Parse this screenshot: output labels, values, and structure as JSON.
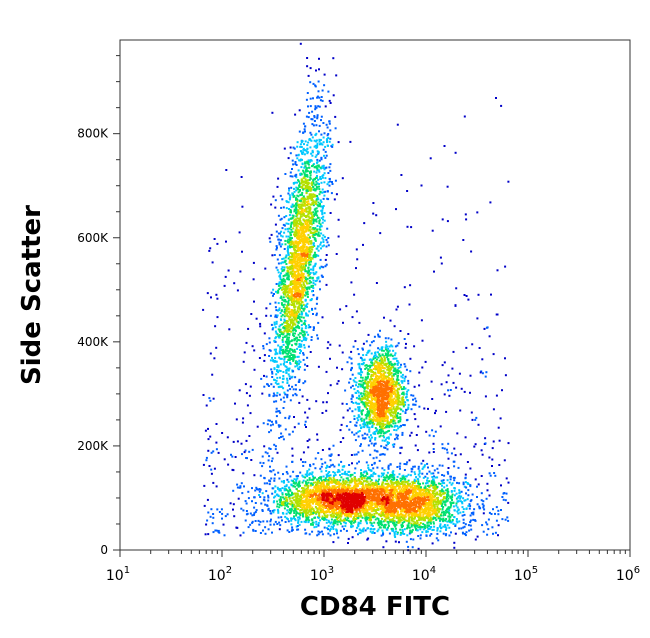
{
  "chart_data": {
    "type": "scatter",
    "style": "density-dot-plot",
    "title": "",
    "xlabel": "CD84 FITC",
    "ylabel": "Side Scatter",
    "x_scale": "log",
    "xlim": [
      10,
      1000000
    ],
    "y_scale": "linear",
    "ylim": [
      0,
      980000
    ],
    "x_ticks": [
      {
        "value": 10,
        "base": "10",
        "exp": "1"
      },
      {
        "value": 100,
        "base": "10",
        "exp": "2"
      },
      {
        "value": 1000,
        "base": "10",
        "exp": "3"
      },
      {
        "value": 10000,
        "base": "10",
        "exp": "4"
      },
      {
        "value": 100000,
        "base": "10",
        "exp": "5"
      },
      {
        "value": 1000000,
        "base": "10",
        "exp": "6"
      }
    ],
    "y_ticks": [
      {
        "value": 0,
        "label": "0"
      },
      {
        "value": 200000,
        "label": "200K"
      },
      {
        "value": 400000,
        "label": "400K"
      },
      {
        "value": 600000,
        "label": "600K"
      },
      {
        "value": 800000,
        "label": "800K"
      }
    ],
    "grid": false,
    "color_scale": [
      "#0000c8",
      "#0060ff",
      "#00c8ff",
      "#00e070",
      "#b4e000",
      "#ffd000",
      "#ff7000",
      "#e00000"
    ],
    "populations": [
      {
        "log_x_center": 2.75,
        "y_center": 560000,
        "log_x_sd": 0.1,
        "y_sd": 130000,
        "rotation": -0.12,
        "density": 0.95
      },
      {
        "log_x_center": 3.55,
        "y_center": 300000,
        "log_x_sd": 0.12,
        "y_sd": 45000,
        "rotation": 0.0,
        "density": 0.55
      },
      {
        "log_x_center": 3.2,
        "y_center": 100000,
        "log_x_sd": 0.35,
        "y_sd": 25000,
        "rotation": 0.0,
        "density": 1.0
      },
      {
        "log_x_center": 3.9,
        "y_center": 90000,
        "log_x_sd": 0.25,
        "y_sd": 30000,
        "rotation": 0.0,
        "density": 0.5
      }
    ]
  }
}
